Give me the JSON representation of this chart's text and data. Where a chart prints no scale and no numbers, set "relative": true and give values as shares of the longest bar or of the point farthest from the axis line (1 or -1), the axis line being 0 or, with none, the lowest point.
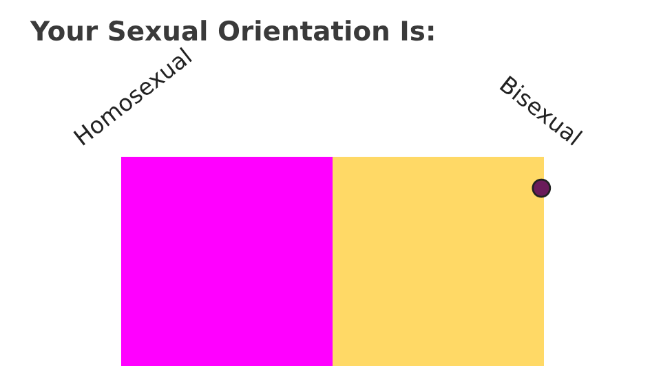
{
  "chart_data": {
    "type": "bar",
    "title": "Your Sexual Orientation Is:",
    "orientation": "horizontal",
    "stacked": true,
    "relative": true,
    "categories": [
      null
    ],
    "series": [
      {
        "name": "Homosexual",
        "color": "#ff00ff",
        "values": [
          0.5
        ]
      },
      {
        "name": "Bisexual",
        "color": "#ffd966",
        "values": [
          0.5
        ]
      }
    ]
  }
}
